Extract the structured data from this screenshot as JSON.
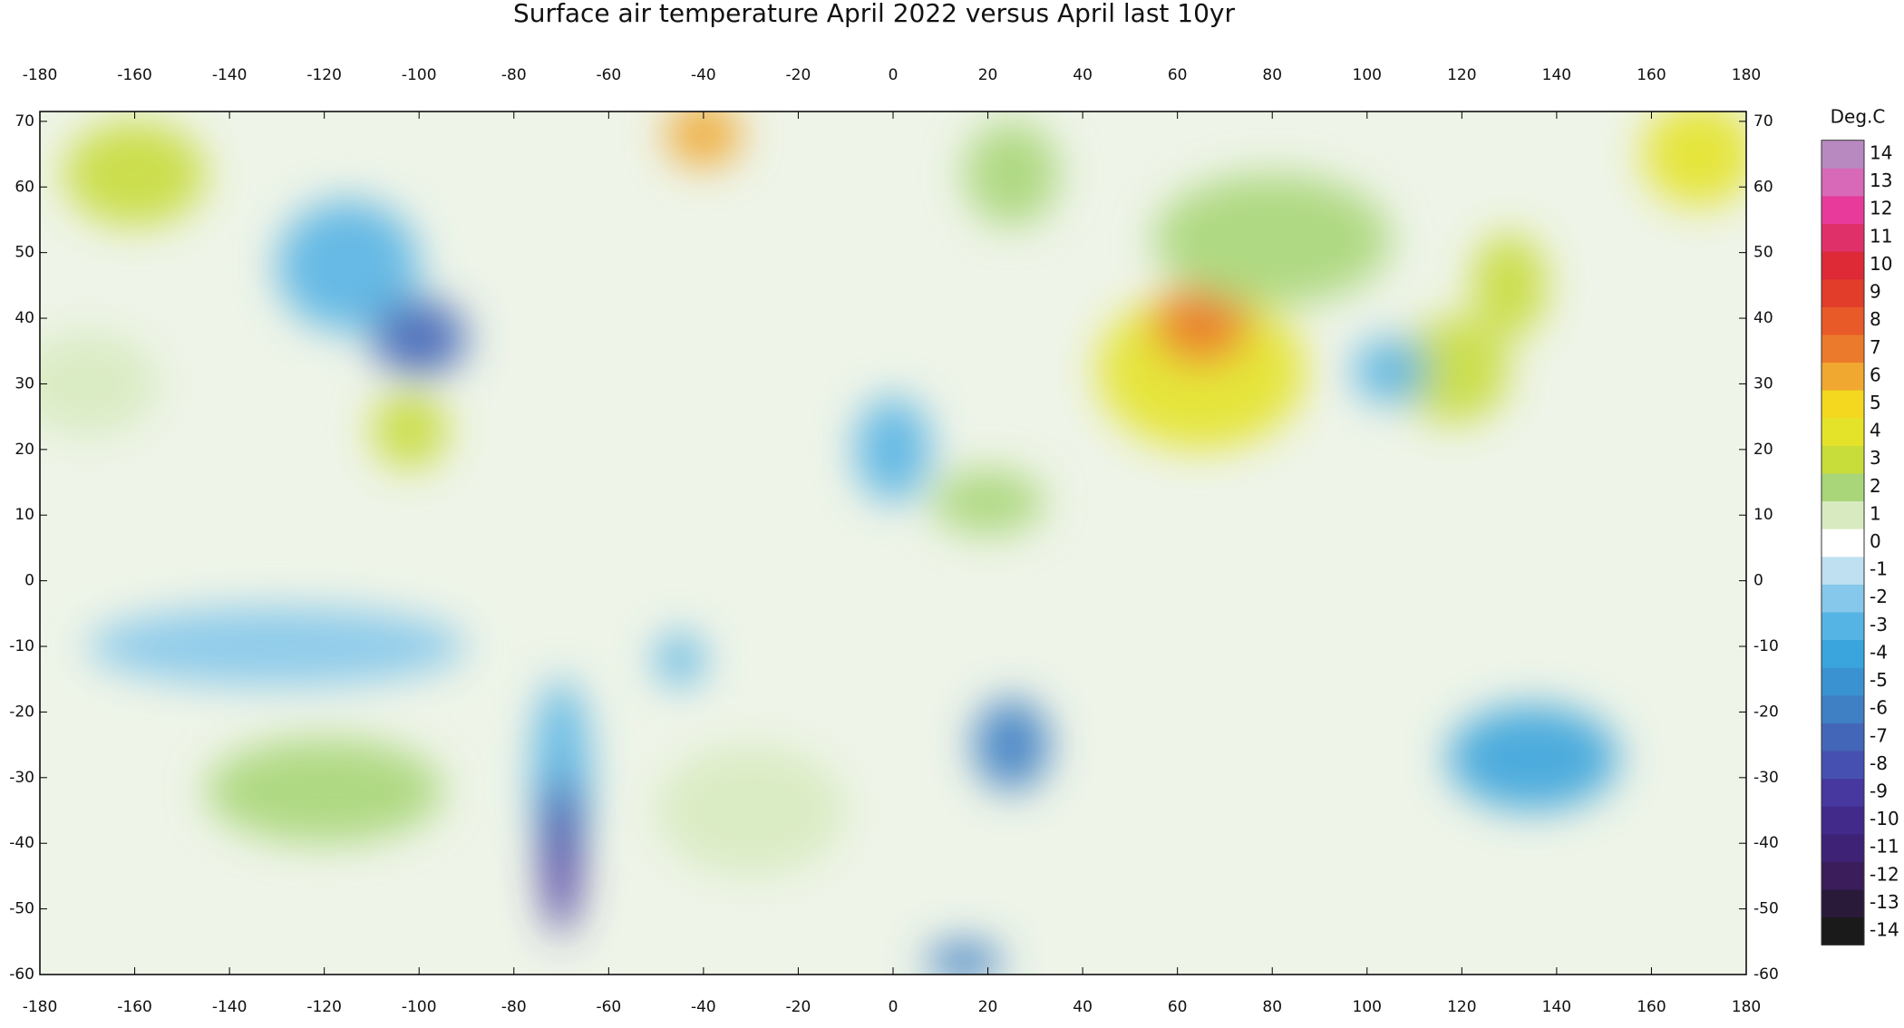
{
  "chart_data": {
    "type": "map",
    "title": "Surface air temperature April 2022 versus April last 10yr",
    "colorbar_label": "Deg.C",
    "xlim": [
      -180,
      180
    ],
    "ylim": [
      -60,
      71.5
    ],
    "xticks": [
      -180,
      -160,
      -140,
      -120,
      -100,
      -80,
      -60,
      -40,
      -20,
      0,
      20,
      40,
      60,
      80,
      100,
      120,
      140,
      160,
      180
    ],
    "yticks": [
      -60,
      -50,
      -40,
      -30,
      -20,
      -10,
      0,
      10,
      20,
      30,
      40,
      50,
      60,
      70
    ],
    "clim": [
      -14,
      14
    ],
    "cticks": [
      -14,
      -13,
      -12,
      -11,
      -10,
      -9,
      -8,
      -7,
      -6,
      -5,
      -4,
      -3,
      -2,
      -1,
      0,
      1,
      2,
      3,
      4,
      5,
      6,
      7,
      8,
      9,
      10,
      11,
      12,
      13,
      14
    ],
    "colors": [
      "#1a1a1a",
      "#2a1a3a",
      "#3a1d5a",
      "#3d2275",
      "#422a8a",
      "#46389e",
      "#4650b0",
      "#4466b8",
      "#3f7fc4",
      "#3a93d0",
      "#3aa4dc",
      "#56b4e4",
      "#85c8eb",
      "#bfe0f0",
      "#ffffff",
      "#d8ebc0",
      "#a8d678",
      "#c8dc3a",
      "#e4e32a",
      "#f4d820",
      "#f0a830",
      "#ec7a2c",
      "#e85a28",
      "#e23c2a",
      "#dd2a36",
      "#e0306a",
      "#e83a9a",
      "#d869b8",
      "#b889c0"
    ],
    "anomalies": [
      {
        "lon": -115,
        "lat": 48,
        "value": -3,
        "rx": 15,
        "ry": 10
      },
      {
        "lon": -100,
        "lat": 37,
        "value": -7,
        "rx": 10,
        "ry": 6
      },
      {
        "lon": -102,
        "lat": 23,
        "value": 3,
        "rx": 8,
        "ry": 6
      },
      {
        "lon": -160,
        "lat": 62,
        "value": 3,
        "rx": 15,
        "ry": 8
      },
      {
        "lon": -40,
        "lat": 68,
        "value": 6,
        "rx": 8,
        "ry": 5
      },
      {
        "lon": 65,
        "lat": 32,
        "value": 4,
        "rx": 22,
        "ry": 12
      },
      {
        "lon": 65,
        "lat": 39,
        "value": 7,
        "rx": 10,
        "ry": 6
      },
      {
        "lon": 80,
        "lat": 52,
        "value": 2,
        "rx": 25,
        "ry": 10
      },
      {
        "lon": 170,
        "lat": 65,
        "value": 4,
        "rx": 12,
        "ry": 8
      },
      {
        "lon": 25,
        "lat": 62,
        "value": 2,
        "rx": 10,
        "ry": 8
      },
      {
        "lon": 0,
        "lat": 20,
        "value": -3,
        "rx": 8,
        "ry": 8
      },
      {
        "lon": 20,
        "lat": 12,
        "value": 2,
        "rx": 12,
        "ry": 5
      },
      {
        "lon": 25,
        "lat": -25,
        "value": -6,
        "rx": 8,
        "ry": 7
      },
      {
        "lon": 135,
        "lat": -27,
        "value": -4,
        "rx": 18,
        "ry": 8
      },
      {
        "lon": -70,
        "lat": -30,
        "value": -3,
        "rx": 6,
        "ry": 15
      },
      {
        "lon": -70,
        "lat": -42,
        "value": -9,
        "rx": 4,
        "ry": 12
      },
      {
        "lon": -45,
        "lat": -12,
        "value": -3,
        "rx": 5,
        "ry": 4
      },
      {
        "lon": -130,
        "lat": -10,
        "value": -2,
        "rx": 40,
        "ry": 6
      },
      {
        "lon": -120,
        "lat": -32,
        "value": 2,
        "rx": 25,
        "ry": 8
      },
      {
        "lon": 118,
        "lat": 32,
        "value": 3,
        "rx": 12,
        "ry": 8
      },
      {
        "lon": 105,
        "lat": 32,
        "value": -3,
        "rx": 8,
        "ry": 5
      },
      {
        "lon": -30,
        "lat": -35,
        "value": 1,
        "rx": 20,
        "ry": 10
      },
      {
        "lon": -170,
        "lat": 30,
        "value": 1,
        "rx": 15,
        "ry": 8
      },
      {
        "lon": 15,
        "lat": -58,
        "value": -6,
        "rx": 8,
        "ry": 3
      },
      {
        "lon": 130,
        "lat": 45,
        "value": 3,
        "rx": 8,
        "ry": 8
      }
    ]
  }
}
